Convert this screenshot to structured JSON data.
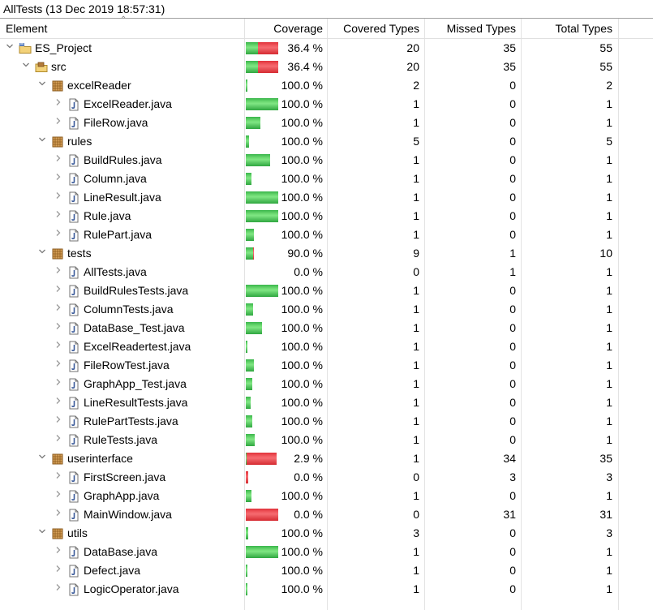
{
  "session_title": "AllTests (13 Dec 2019 18:57:31)",
  "columns": {
    "element": "Element",
    "coverage": "Coverage",
    "covered": "Covered Types",
    "missed": "Missed Types",
    "total": "Total Types"
  },
  "colors": {
    "covered": "#39b54a",
    "missed": "#e0323a"
  },
  "rows": [
    {
      "label": "ES_Project",
      "level": 0,
      "expanded": true,
      "icon": "project-icon",
      "coverage": "36.4 %",
      "covered": "20",
      "missed": "35",
      "total": "55",
      "bar_fraction": 1.0,
      "covered_ratio": 0.364
    },
    {
      "label": "src",
      "level": 1,
      "expanded": true,
      "icon": "source-folder-icon",
      "coverage": "36.4 %",
      "covered": "20",
      "missed": "35",
      "total": "55",
      "bar_fraction": 1.0,
      "covered_ratio": 0.364
    },
    {
      "label": "excelReader",
      "level": 2,
      "expanded": true,
      "icon": "package-icon",
      "coverage": "100.0 %",
      "covered": "2",
      "missed": "0",
      "total": "2",
      "bar_fraction": 0.04,
      "covered_ratio": 1.0
    },
    {
      "label": "ExcelReader.java",
      "level": 3,
      "expanded": false,
      "icon": "java-file-icon",
      "coverage": "100.0 %",
      "covered": "1",
      "missed": "0",
      "total": "1",
      "bar_fraction": 1.0,
      "covered_ratio": 1.0
    },
    {
      "label": "FileRow.java",
      "level": 3,
      "expanded": false,
      "icon": "java-file-icon",
      "coverage": "100.0 %",
      "covered": "1",
      "missed": "0",
      "total": "1",
      "bar_fraction": 0.45,
      "covered_ratio": 1.0
    },
    {
      "label": "rules",
      "level": 2,
      "expanded": true,
      "icon": "package-icon",
      "coverage": "100.0 %",
      "covered": "5",
      "missed": "0",
      "total": "5",
      "bar_fraction": 0.1,
      "covered_ratio": 1.0
    },
    {
      "label": "BuildRules.java",
      "level": 3,
      "expanded": false,
      "icon": "java-file-icon",
      "coverage": "100.0 %",
      "covered": "1",
      "missed": "0",
      "total": "1",
      "bar_fraction": 0.75,
      "covered_ratio": 1.0
    },
    {
      "label": "Column.java",
      "level": 3,
      "expanded": false,
      "icon": "java-file-icon",
      "coverage": "100.0 %",
      "covered": "1",
      "missed": "0",
      "total": "1",
      "bar_fraction": 0.18,
      "covered_ratio": 1.0
    },
    {
      "label": "LineResult.java",
      "level": 3,
      "expanded": false,
      "icon": "java-file-icon",
      "coverage": "100.0 %",
      "covered": "1",
      "missed": "0",
      "total": "1",
      "bar_fraction": 1.0,
      "covered_ratio": 1.0
    },
    {
      "label": "Rule.java",
      "level": 3,
      "expanded": false,
      "icon": "java-file-icon",
      "coverage": "100.0 %",
      "covered": "1",
      "missed": "0",
      "total": "1",
      "bar_fraction": 1.0,
      "covered_ratio": 1.0
    },
    {
      "label": "RulePart.java",
      "level": 3,
      "expanded": false,
      "icon": "java-file-icon",
      "coverage": "100.0 %",
      "covered": "1",
      "missed": "0",
      "total": "1",
      "bar_fraction": 0.25,
      "covered_ratio": 1.0
    },
    {
      "label": "tests",
      "level": 2,
      "expanded": true,
      "icon": "package-icon",
      "coverage": "90.0 %",
      "covered": "9",
      "missed": "1",
      "total": "10",
      "bar_fraction": 0.25,
      "covered_ratio": 0.9
    },
    {
      "label": "AllTests.java",
      "level": 3,
      "expanded": false,
      "icon": "java-file-icon",
      "coverage": "0.0 %",
      "covered": "0",
      "missed": "1",
      "total": "1",
      "bar_fraction": 0.0,
      "covered_ratio": 0.0
    },
    {
      "label": "BuildRulesTests.java",
      "level": 3,
      "expanded": false,
      "icon": "java-file-icon",
      "coverage": "100.0 %",
      "covered": "1",
      "missed": "0",
      "total": "1",
      "bar_fraction": 1.0,
      "covered_ratio": 1.0
    },
    {
      "label": "ColumnTests.java",
      "level": 3,
      "expanded": false,
      "icon": "java-file-icon",
      "coverage": "100.0 %",
      "covered": "1",
      "missed": "0",
      "total": "1",
      "bar_fraction": 0.22,
      "covered_ratio": 1.0
    },
    {
      "label": "DataBase_Test.java",
      "level": 3,
      "expanded": false,
      "icon": "java-file-icon",
      "coverage": "100.0 %",
      "covered": "1",
      "missed": "0",
      "total": "1",
      "bar_fraction": 0.5,
      "covered_ratio": 1.0
    },
    {
      "label": "ExcelReadertest.java",
      "level": 3,
      "expanded": false,
      "icon": "java-file-icon",
      "coverage": "100.0 %",
      "covered": "1",
      "missed": "0",
      "total": "1",
      "bar_fraction": 0.06,
      "covered_ratio": 1.0
    },
    {
      "label": "FileRowTest.java",
      "level": 3,
      "expanded": false,
      "icon": "java-file-icon",
      "coverage": "100.0 %",
      "covered": "1",
      "missed": "0",
      "total": "1",
      "bar_fraction": 0.25,
      "covered_ratio": 1.0
    },
    {
      "label": "GraphApp_Test.java",
      "level": 3,
      "expanded": false,
      "icon": "java-file-icon",
      "coverage": "100.0 %",
      "covered": "1",
      "missed": "0",
      "total": "1",
      "bar_fraction": 0.2,
      "covered_ratio": 1.0
    },
    {
      "label": "LineResultTests.java",
      "level": 3,
      "expanded": false,
      "icon": "java-file-icon",
      "coverage": "100.0 %",
      "covered": "1",
      "missed": "0",
      "total": "1",
      "bar_fraction": 0.15,
      "covered_ratio": 1.0
    },
    {
      "label": "RulePartTests.java",
      "level": 3,
      "expanded": false,
      "icon": "java-file-icon",
      "coverage": "100.0 %",
      "covered": "1",
      "missed": "0",
      "total": "1",
      "bar_fraction": 0.2,
      "covered_ratio": 1.0
    },
    {
      "label": "RuleTests.java",
      "level": 3,
      "expanded": false,
      "icon": "java-file-icon",
      "coverage": "100.0 %",
      "covered": "1",
      "missed": "0",
      "total": "1",
      "bar_fraction": 0.28,
      "covered_ratio": 1.0
    },
    {
      "label": "userinterface",
      "level": 2,
      "expanded": true,
      "icon": "package-icon",
      "coverage": "2.9 %",
      "covered": "1",
      "missed": "34",
      "total": "35",
      "bar_fraction": 0.95,
      "covered_ratio": 0.029
    },
    {
      "label": "FirstScreen.java",
      "level": 3,
      "expanded": false,
      "icon": "java-file-icon",
      "coverage": "0.0 %",
      "covered": "0",
      "missed": "3",
      "total": "3",
      "bar_fraction": 0.08,
      "covered_ratio": 0.0
    },
    {
      "label": "GraphApp.java",
      "level": 3,
      "expanded": false,
      "icon": "java-file-icon",
      "coverage": "100.0 %",
      "covered": "1",
      "missed": "0",
      "total": "1",
      "bar_fraction": 0.17,
      "covered_ratio": 1.0
    },
    {
      "label": "MainWindow.java",
      "level": 3,
      "expanded": false,
      "icon": "java-file-icon",
      "coverage": "0.0 %",
      "covered": "0",
      "missed": "31",
      "total": "31",
      "bar_fraction": 1.0,
      "covered_ratio": 0.0
    },
    {
      "label": "utils",
      "level": 2,
      "expanded": true,
      "icon": "package-icon",
      "coverage": "100.0 %",
      "covered": "3",
      "missed": "0",
      "total": "3",
      "bar_fraction": 0.08,
      "covered_ratio": 1.0
    },
    {
      "label": "DataBase.java",
      "level": 3,
      "expanded": false,
      "icon": "java-file-icon",
      "coverage": "100.0 %",
      "covered": "1",
      "missed": "0",
      "total": "1",
      "bar_fraction": 1.0,
      "covered_ratio": 1.0
    },
    {
      "label": "Defect.java",
      "level": 3,
      "expanded": false,
      "icon": "java-file-icon",
      "coverage": "100.0 %",
      "covered": "1",
      "missed": "0",
      "total": "1",
      "bar_fraction": 0.06,
      "covered_ratio": 1.0
    },
    {
      "label": "LogicOperator.java",
      "level": 3,
      "expanded": false,
      "icon": "java-file-icon",
      "coverage": "100.0 %",
      "covered": "1",
      "missed": "0",
      "total": "1",
      "bar_fraction": 0.06,
      "covered_ratio": 1.0
    }
  ]
}
